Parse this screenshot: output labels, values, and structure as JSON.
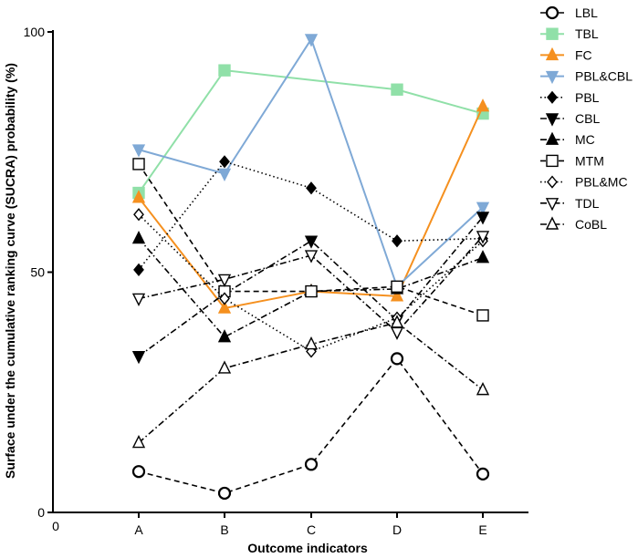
{
  "chart_data": {
    "type": "line",
    "title": "",
    "xlabel": "Outcome indicators",
    "ylabel": "Surface under the cumulative ranking curve (SUCRA) probability (%)",
    "categories": [
      "A",
      "B",
      "C",
      "D",
      "E"
    ],
    "origin_label": "0",
    "ylim": [
      0,
      100
    ],
    "yticks": [
      0,
      50,
      100
    ],
    "legend_position": "right",
    "series": [
      {
        "name": "LBL",
        "values": [
          8.5,
          4.0,
          10.0,
          32.0,
          8.0
        ],
        "color": "#000000",
        "dash": "dashed",
        "marker": "circle-open"
      },
      {
        "name": "TBL",
        "values": [
          66.5,
          92.0,
          null,
          88.0,
          83.0
        ],
        "color": "#90e0a8",
        "dash": "solid",
        "marker": "square-filled"
      },
      {
        "name": "FC",
        "values": [
          65.5,
          42.5,
          46.0,
          45.0,
          84.5
        ],
        "color": "#f5901f",
        "dash": "solid",
        "marker": "triangle-up-filled"
      },
      {
        "name": "PBL&CBL",
        "values": [
          75.5,
          70.5,
          98.5,
          47.0,
          63.5
        ],
        "color": "#7fa9d6",
        "dash": "solid",
        "marker": "triangle-down-filled"
      },
      {
        "name": "PBL",
        "values": [
          50.5,
          73.0,
          67.5,
          56.5,
          57.0
        ],
        "color": "#000000",
        "dash": "dotted",
        "marker": "diamond-filled"
      },
      {
        "name": "CBL",
        "values": [
          32.5,
          45.5,
          56.5,
          40.0,
          61.5
        ],
        "color": "#000000",
        "dash": "dashdot",
        "marker": "triangle-down-filled"
      },
      {
        "name": "MC",
        "values": [
          57.0,
          36.5,
          46.0,
          46.5,
          53.0
        ],
        "color": "#000000",
        "dash": "dashdot",
        "marker": "triangle-up-filled"
      },
      {
        "name": "MTM",
        "values": [
          72.5,
          46.0,
          46.0,
          47.0,
          41.0
        ],
        "color": "#000000",
        "dash": "dashed",
        "marker": "square-open"
      },
      {
        "name": "PBL&MC",
        "values": [
          62.0,
          44.5,
          33.5,
          40.5,
          56.5
        ],
        "color": "#000000",
        "dash": "dotted",
        "marker": "diamond-open"
      },
      {
        "name": "TDL",
        "values": [
          44.5,
          48.5,
          53.5,
          37.5,
          57.5
        ],
        "color": "#000000",
        "dash": "dashdot",
        "marker": "triangle-down-open"
      },
      {
        "name": "CoBL",
        "values": [
          14.5,
          30.0,
          35.0,
          39.5,
          25.5
        ],
        "color": "#000000",
        "dash": "dashdot",
        "marker": "triangle-up-open"
      }
    ]
  }
}
